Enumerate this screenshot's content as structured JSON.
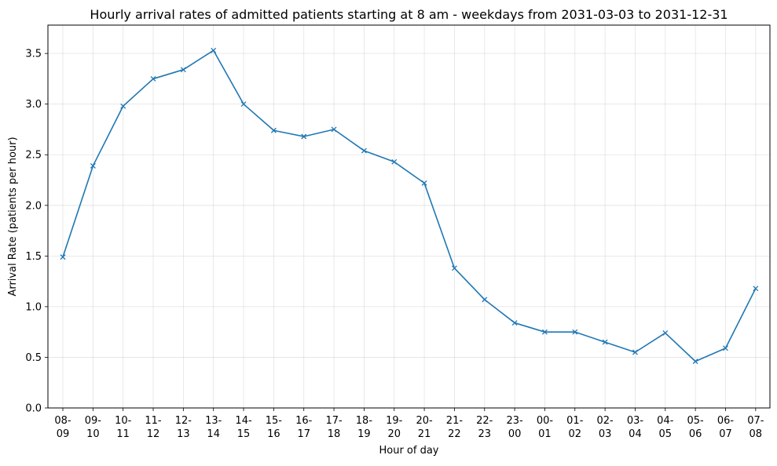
{
  "chart_data": {
    "type": "line",
    "title": "Hourly arrival rates of admitted patients starting at 8 am - weekdays from 2031-03-03 to 2031-12-31",
    "xlabel": "Hour of day",
    "ylabel": "Arrival Rate (patients per hour)",
    "categories": [
      [
        "08-",
        "09"
      ],
      [
        "09-",
        "10"
      ],
      [
        "10-",
        "11"
      ],
      [
        "11-",
        "12"
      ],
      [
        "12-",
        "13"
      ],
      [
        "13-",
        "14"
      ],
      [
        "14-",
        "15"
      ],
      [
        "15-",
        "16"
      ],
      [
        "16-",
        "17"
      ],
      [
        "17-",
        "18"
      ],
      [
        "18-",
        "19"
      ],
      [
        "19-",
        "20"
      ],
      [
        "20-",
        "21"
      ],
      [
        "21-",
        "22"
      ],
      [
        "22-",
        "23"
      ],
      [
        "23-",
        "00"
      ],
      [
        "00-",
        "01"
      ],
      [
        "01-",
        "02"
      ],
      [
        "02-",
        "03"
      ],
      [
        "03-",
        "04"
      ],
      [
        "04-",
        "05"
      ],
      [
        "05-",
        "06"
      ],
      [
        "06-",
        "07"
      ],
      [
        "07-",
        "08"
      ]
    ],
    "series": [
      {
        "values": [
          1.49,
          2.39,
          2.98,
          3.25,
          3.34,
          3.53,
          3.0,
          2.74,
          2.68,
          2.75,
          2.54,
          2.43,
          2.22,
          1.38,
          1.07,
          0.84,
          0.75,
          0.75,
          0.65,
          0.55,
          0.74,
          0.46,
          0.59,
          1.18
        ],
        "color": "#1f77b4",
        "marker": "x"
      }
    ],
    "yticks": [
      "0.0",
      "0.5",
      "1.0",
      "1.5",
      "2.0",
      "2.5",
      "3.0",
      "3.5"
    ],
    "ylim": [
      0,
      3.78
    ],
    "grid": true
  }
}
